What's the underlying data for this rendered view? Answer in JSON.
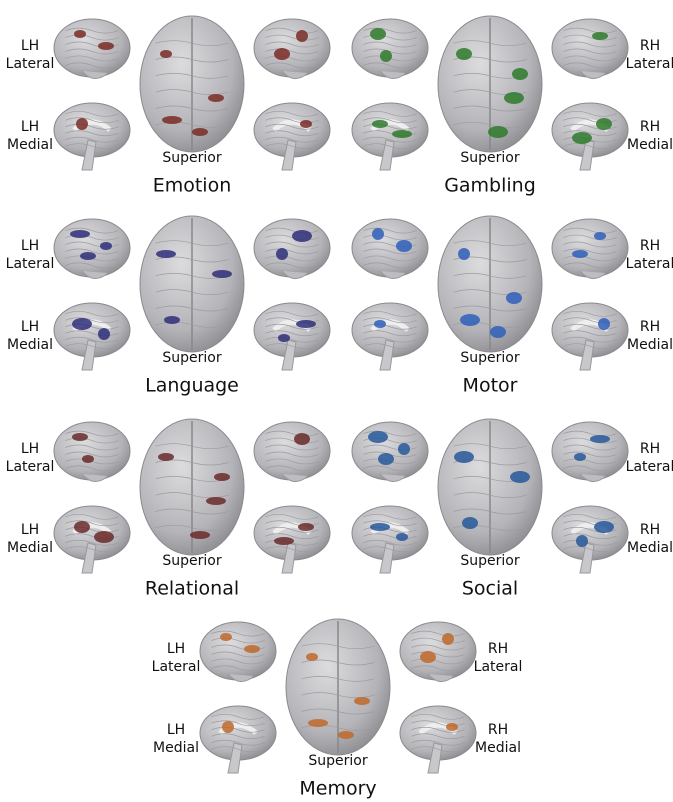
{
  "panels": [
    {
      "title": "Emotion",
      "color": "#7a2b26",
      "left_labels": [
        [
          "LH",
          "Lateral"
        ],
        [
          "LH",
          "Medial"
        ]
      ],
      "superior": "Superior"
    },
    {
      "title": "Gambling",
      "color": "#2f7a2c",
      "right_labels": [
        [
          "RH",
          "Lateral"
        ],
        [
          "RH",
          "Medial"
        ]
      ],
      "superior": "Superior"
    },
    {
      "title": "Language",
      "color": "#2f2f7a",
      "left_labels": [
        [
          "LH",
          "Lateral"
        ],
        [
          "LH",
          "Medial"
        ]
      ],
      "superior": "Superior"
    },
    {
      "title": "Motor",
      "color": "#2e5fb8",
      "right_labels": [
        [
          "RH",
          "Lateral"
        ],
        [
          "RH",
          "Medial"
        ]
      ],
      "superior": "Superior"
    },
    {
      "title": "Relational",
      "color": "#6a2a2a",
      "left_labels": [
        [
          "LH",
          "Lateral"
        ],
        [
          "LH",
          "Medial"
        ]
      ],
      "superior": "Superior"
    },
    {
      "title": "Social",
      "color": "#27589a",
      "right_labels": [
        [
          "RH",
          "Lateral"
        ],
        [
          "RH",
          "Medial"
        ]
      ],
      "superior": "Superior"
    },
    {
      "title": "Memory",
      "color": "#c0692a",
      "left_labels": [
        [
          "LH",
          "Lateral"
        ],
        [
          "LH",
          "Medial"
        ]
      ],
      "right_labels": [
        [
          "RH",
          "Lateral"
        ],
        [
          "RH",
          "Medial"
        ]
      ],
      "superior": "Superior"
    }
  ]
}
